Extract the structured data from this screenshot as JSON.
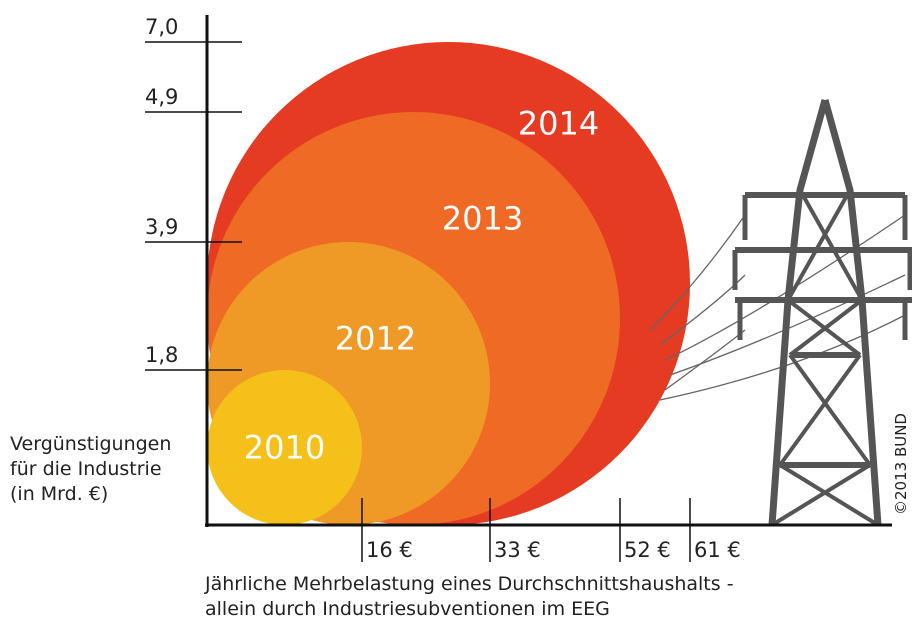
{
  "chart_data": {
    "type": "bubble",
    "categories": [
      "2010",
      "2012",
      "2013",
      "2014"
    ],
    "values": [
      1.8,
      3.9,
      4.9,
      7.0
    ],
    "x": [
      16,
      33,
      52,
      61
    ],
    "colors": [
      "#f6c01a",
      "#ef9a26",
      "#ee6a25",
      "#e53b23"
    ],
    "yticks": [
      {
        "value": 1.8,
        "label": "1,8"
      },
      {
        "value": 3.9,
        "label": "3,9"
      },
      {
        "value": 4.9,
        "label": "4,9"
      },
      {
        "value": 7.0,
        "label": "7,0"
      }
    ],
    "xticks": [
      {
        "value": 16,
        "label": "16 €"
      },
      {
        "value": 33,
        "label": "33 €"
      },
      {
        "value": 52,
        "label": "52 €"
      },
      {
        "value": 61,
        "label": "61 €"
      }
    ],
    "y_label": [
      "Vergünstigungen",
      "für die Industrie",
      "(in Mrd. €)"
    ],
    "x_label": [
      "Jährliche Mehrbelastung eines Durchschnittshaushalts -",
      "allein durch Industriesubventionen im EEG"
    ],
    "credit": "©2013 BUND"
  }
}
